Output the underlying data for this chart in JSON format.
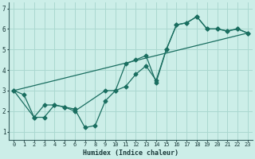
{
  "xlabel": "Humidex (Indice chaleur)",
  "bg_color": "#cceee8",
  "grid_color": "#aad8d0",
  "line_color": "#1a6e60",
  "xlim": [
    -0.5,
    23.5
  ],
  "ylim": [
    0.6,
    7.3
  ],
  "xticks": [
    0,
    1,
    2,
    3,
    4,
    5,
    6,
    7,
    8,
    9,
    10,
    11,
    12,
    13,
    14,
    15,
    16,
    17,
    18,
    19,
    20,
    21,
    22,
    23
  ],
  "yticks": [
    1,
    2,
    3,
    4,
    5,
    6,
    7
  ],
  "line1_x": [
    0,
    1,
    2,
    3,
    4,
    5,
    6,
    7,
    8,
    9,
    10,
    11,
    12,
    13,
    14,
    15,
    16,
    17,
    18,
    19,
    20,
    21,
    22,
    23
  ],
  "line1_y": [
    3.0,
    2.8,
    1.7,
    1.7,
    2.3,
    2.2,
    2.1,
    1.2,
    1.3,
    2.5,
    3.0,
    3.2,
    3.8,
    4.2,
    3.5,
    5.0,
    6.2,
    6.3,
    6.6,
    6.0,
    6.0,
    5.9,
    6.0,
    5.8
  ],
  "line2_x": [
    0,
    2,
    3,
    4,
    5,
    6,
    9,
    10,
    11,
    12,
    13,
    14,
    15,
    16,
    17,
    18,
    19,
    20,
    21,
    22,
    23
  ],
  "line2_y": [
    3.0,
    1.7,
    2.3,
    2.3,
    2.2,
    2.0,
    3.0,
    3.0,
    4.3,
    4.5,
    4.7,
    3.4,
    5.0,
    6.2,
    6.3,
    6.6,
    6.0,
    6.0,
    5.9,
    6.0,
    5.8
  ],
  "line3_x": [
    0,
    23
  ],
  "line3_y": [
    3.0,
    5.8
  ]
}
